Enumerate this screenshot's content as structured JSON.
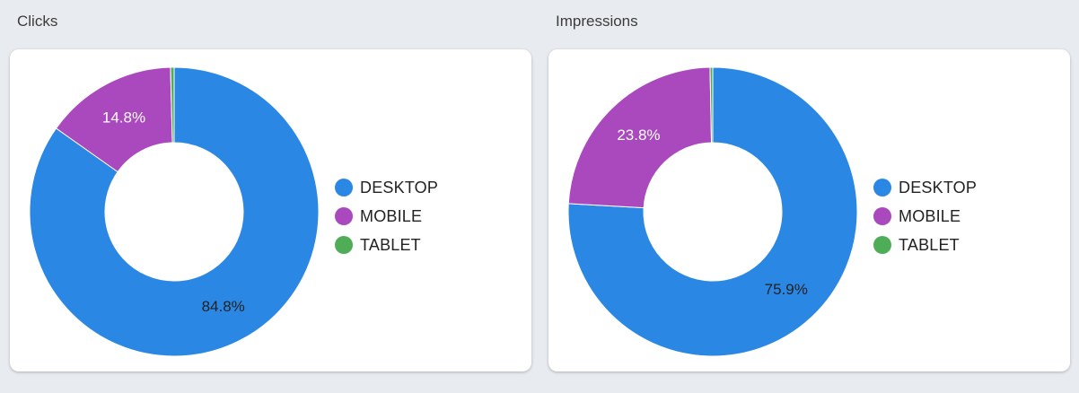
{
  "colors": {
    "desktop": "#2a88e4",
    "mobile": "#aa48bd",
    "tablet": "#50ad57"
  },
  "chart_data": [
    {
      "type": "pie",
      "title": "Clicks",
      "donut": true,
      "legend_position": "right",
      "slices": [
        {
          "label": "DESKTOP",
          "value": 84.8,
          "display": "84.8%",
          "color": "#2a88e4"
        },
        {
          "label": "MOBILE",
          "value": 14.8,
          "display": "14.8%",
          "color": "#aa48bd"
        },
        {
          "label": "TABLET",
          "value": 0.4,
          "display": "",
          "color": "#50ad57"
        }
      ]
    },
    {
      "type": "pie",
      "title": "Impressions",
      "donut": true,
      "legend_position": "right",
      "slices": [
        {
          "label": "DESKTOP",
          "value": 75.9,
          "display": "75.9%",
          "color": "#2a88e4"
        },
        {
          "label": "MOBILE",
          "value": 23.8,
          "display": "23.8%",
          "color": "#aa48bd"
        },
        {
          "label": "TABLET",
          "value": 0.3,
          "display": "",
          "color": "#50ad57"
        }
      ]
    }
  ]
}
